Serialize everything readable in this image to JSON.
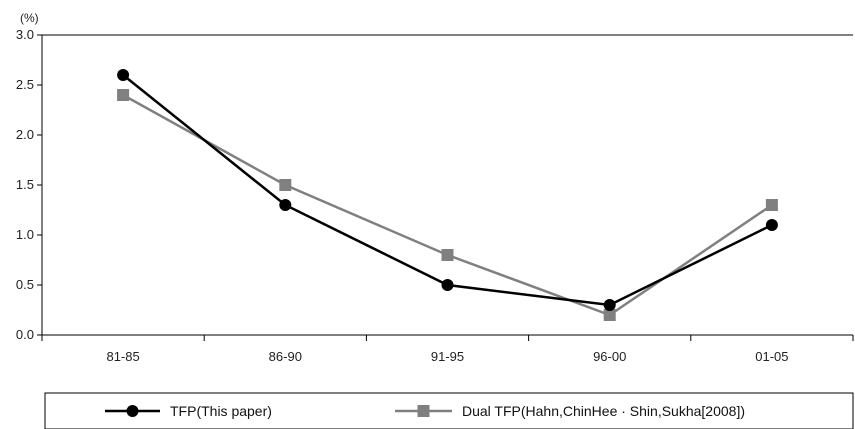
{
  "chart_data": {
    "type": "line",
    "title": "",
    "xlabel": "",
    "ylabel": "(%)",
    "categories": [
      "81-85",
      "86-90",
      "91-95",
      "96-00",
      "01-05"
    ],
    "ylim": [
      0,
      3.0
    ],
    "yticks": [
      "0.0",
      "0.5",
      "1.0",
      "1.5",
      "2.0",
      "2.5",
      "3.0"
    ],
    "grid": false,
    "legend_position": "bottom",
    "series": [
      {
        "name": "TFP(This paper)",
        "values": [
          2.6,
          1.3,
          0.5,
          0.3,
          1.1
        ],
        "color": "#000000",
        "marker": "circle"
      },
      {
        "name": "Dual TFP(Hahn,ChinHee · Shin,Sukha[2008])",
        "values": [
          2.4,
          1.5,
          0.8,
          0.2,
          1.3
        ],
        "color": "#808080",
        "marker": "square"
      }
    ]
  }
}
